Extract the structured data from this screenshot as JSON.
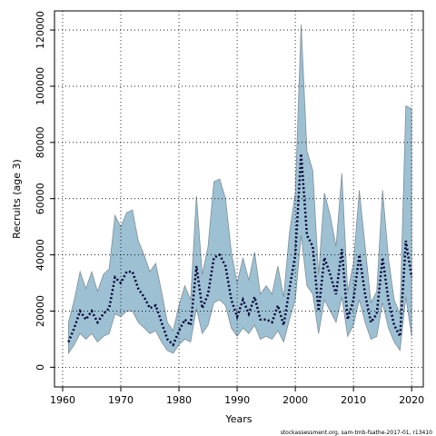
{
  "chart_data": {
    "type": "line",
    "xlabel": "Years",
    "ylabel": "Recruits (age 3)",
    "footnote": "stockassessment.org, sam-tmb-fsathe-2017-01, r13410",
    "x": [
      1961,
      1962,
      1963,
      1964,
      1965,
      1966,
      1967,
      1968,
      1969,
      1970,
      1971,
      1972,
      1973,
      1974,
      1975,
      1976,
      1977,
      1978,
      1979,
      1980,
      1981,
      1982,
      1983,
      1984,
      1985,
      1986,
      1987,
      1988,
      1989,
      1990,
      1991,
      1992,
      1993,
      1994,
      1995,
      1996,
      1997,
      1998,
      1999,
      2000,
      2001,
      2002,
      2003,
      2004,
      2005,
      2006,
      2007,
      2008,
      2009,
      2010,
      2011,
      2012,
      2013,
      2014,
      2015,
      2016,
      2017,
      2018,
      2019,
      2020
    ],
    "values": [
      9000,
      14000,
      20000,
      17000,
      20000,
      16000,
      19000,
      21000,
      32000,
      30000,
      34000,
      34000,
      28000,
      25000,
      21000,
      22000,
      16000,
      10000,
      8000,
      13000,
      17000,
      15000,
      36000,
      21000,
      26000,
      39000,
      40000,
      36000,
      24000,
      18000,
      24000,
      19000,
      25000,
      17000,
      17000,
      16000,
      22000,
      15000,
      28000,
      40000,
      76000,
      47000,
      43000,
      20000,
      39000,
      33000,
      26000,
      42000,
      17000,
      24000,
      40000,
      26000,
      16000,
      19000,
      39000,
      24000,
      15000,
      11000,
      45000,
      32000
    ],
    "lower": [
      5000,
      8000,
      12000,
      10000,
      12000,
      9000,
      11000,
      12000,
      19000,
      18000,
      20000,
      20000,
      16000,
      14000,
      12000,
      13000,
      9000,
      6000,
      5000,
      8000,
      10000,
      9000,
      21000,
      12000,
      15000,
      23000,
      24000,
      22000,
      14000,
      11000,
      14000,
      12000,
      15000,
      10000,
      11000,
      10000,
      13000,
      9000,
      17000,
      24000,
      47000,
      29000,
      26000,
      12000,
      24000,
      20000,
      16000,
      25000,
      11000,
      15000,
      24000,
      16000,
      10000,
      11000,
      23000,
      14000,
      9000,
      6000,
      25000,
      11000
    ],
    "upper": [
      16000,
      24000,
      34000,
      28000,
      34000,
      27000,
      33000,
      35000,
      54000,
      50000,
      55000,
      56000,
      45000,
      40000,
      34000,
      37000,
      27000,
      16000,
      13000,
      22000,
      29000,
      24000,
      61000,
      33000,
      43000,
      66000,
      67000,
      60000,
      41000,
      30000,
      39000,
      31000,
      41000,
      26000,
      29000,
      26000,
      36000,
      25000,
      48000,
      62000,
      122000,
      77000,
      70000,
      33000,
      62000,
      54000,
      43000,
      69000,
      27000,
      37000,
      63000,
      43000,
      23000,
      27000,
      63000,
      39000,
      24000,
      19000,
      93000,
      92000
    ],
    "color": "#000033",
    "band_color": "#9dc0d3",
    "xlim": [
      1958.6,
      2022
    ],
    "ylim": [
      -7000,
      126800
    ],
    "xticks": [
      1960,
      1970,
      1980,
      1990,
      2000,
      2010,
      2020
    ],
    "yticks": [
      0,
      20000,
      40000,
      60000,
      80000,
      100000,
      120000
    ],
    "grid": true
  }
}
